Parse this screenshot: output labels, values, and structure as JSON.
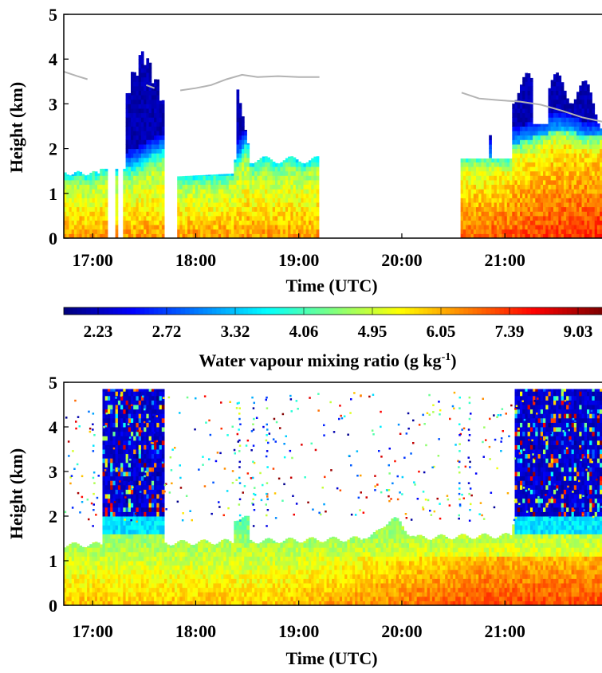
{
  "chart_data": [
    {
      "type": "heatmap",
      "panel": "top",
      "xlabel": "Time (UTC)",
      "ylabel": "Height (km)",
      "x_ticks": [
        "17:00",
        "18:00",
        "19:00",
        "20:00",
        "21:00"
      ],
      "x_tick_hours": [
        17,
        18,
        19,
        20,
        21
      ],
      "xlim_hours": [
        16.72,
        21.95
      ],
      "y_ticks": [
        0,
        1,
        2,
        3,
        4,
        5
      ],
      "ylim": [
        0,
        5
      ],
      "data_gaps_hours": [
        [
          17.15,
          17.22
        ],
        [
          17.25,
          17.3
        ],
        [
          17.7,
          17.82
        ],
        [
          19.2,
          20.58
        ]
      ],
      "cloud_top_line": [
        {
          "segment": [
            [
              16.72,
              3.72
            ],
            [
              16.85,
              3.62
            ],
            [
              16.95,
              3.55
            ]
          ]
        },
        {
          "segment": [
            [
              17.52,
              3.42
            ],
            [
              17.6,
              3.35
            ]
          ]
        },
        {
          "segment": [
            [
              17.85,
              3.3
            ],
            [
              18.0,
              3.35
            ],
            [
              18.15,
              3.42
            ],
            [
              18.3,
              3.55
            ],
            [
              18.45,
              3.65
            ],
            [
              18.6,
              3.6
            ],
            [
              18.8,
              3.62
            ],
            [
              19.0,
              3.6
            ],
            [
              19.2,
              3.6
            ]
          ]
        },
        {
          "segment": [
            [
              20.58,
              3.25
            ],
            [
              20.75,
              3.12
            ],
            [
              20.95,
              3.08
            ],
            [
              21.15,
              3.05
            ],
            [
              21.35,
              2.98
            ],
            [
              21.55,
              2.85
            ],
            [
              21.75,
              2.7
            ],
            [
              21.95,
              2.6
            ]
          ]
        }
      ]
    },
    {
      "type": "colorbar",
      "label": "Water vapour mixing ratio (g kg",
      "label_exponent": "-1",
      "label_close": ")",
      "tick_labels": [
        "2.23",
        "2.72",
        "3.32",
        "4.06",
        "4.95",
        "6.05",
        "7.39",
        "9.03"
      ],
      "colormap": "jet",
      "scale": "log"
    },
    {
      "type": "heatmap",
      "panel": "bottom",
      "xlabel": "Time (UTC)",
      "ylabel": "Height (km)",
      "x_ticks": [
        "17:00",
        "18:00",
        "19:00",
        "20:00",
        "21:00"
      ],
      "x_tick_hours": [
        17,
        18,
        19,
        20,
        21
      ],
      "xlim_hours": [
        16.72,
        21.95
      ],
      "y_ticks": [
        0,
        1,
        2,
        3,
        4,
        5
      ],
      "ylim": [
        0,
        5
      ],
      "dense_cloud_intervals_hours": [
        [
          17.08,
          17.68
        ],
        [
          21.08,
          21.95
        ]
      ]
    }
  ],
  "colors": {
    "colormap_stops": [
      "#00007f",
      "#0000ff",
      "#007fff",
      "#00ffff",
      "#7fff7f",
      "#ffff00",
      "#ff7f00",
      "#ff0000",
      "#7f0000"
    ],
    "cloud_top_line": "#b3b3b3",
    "axis": "#000000"
  }
}
